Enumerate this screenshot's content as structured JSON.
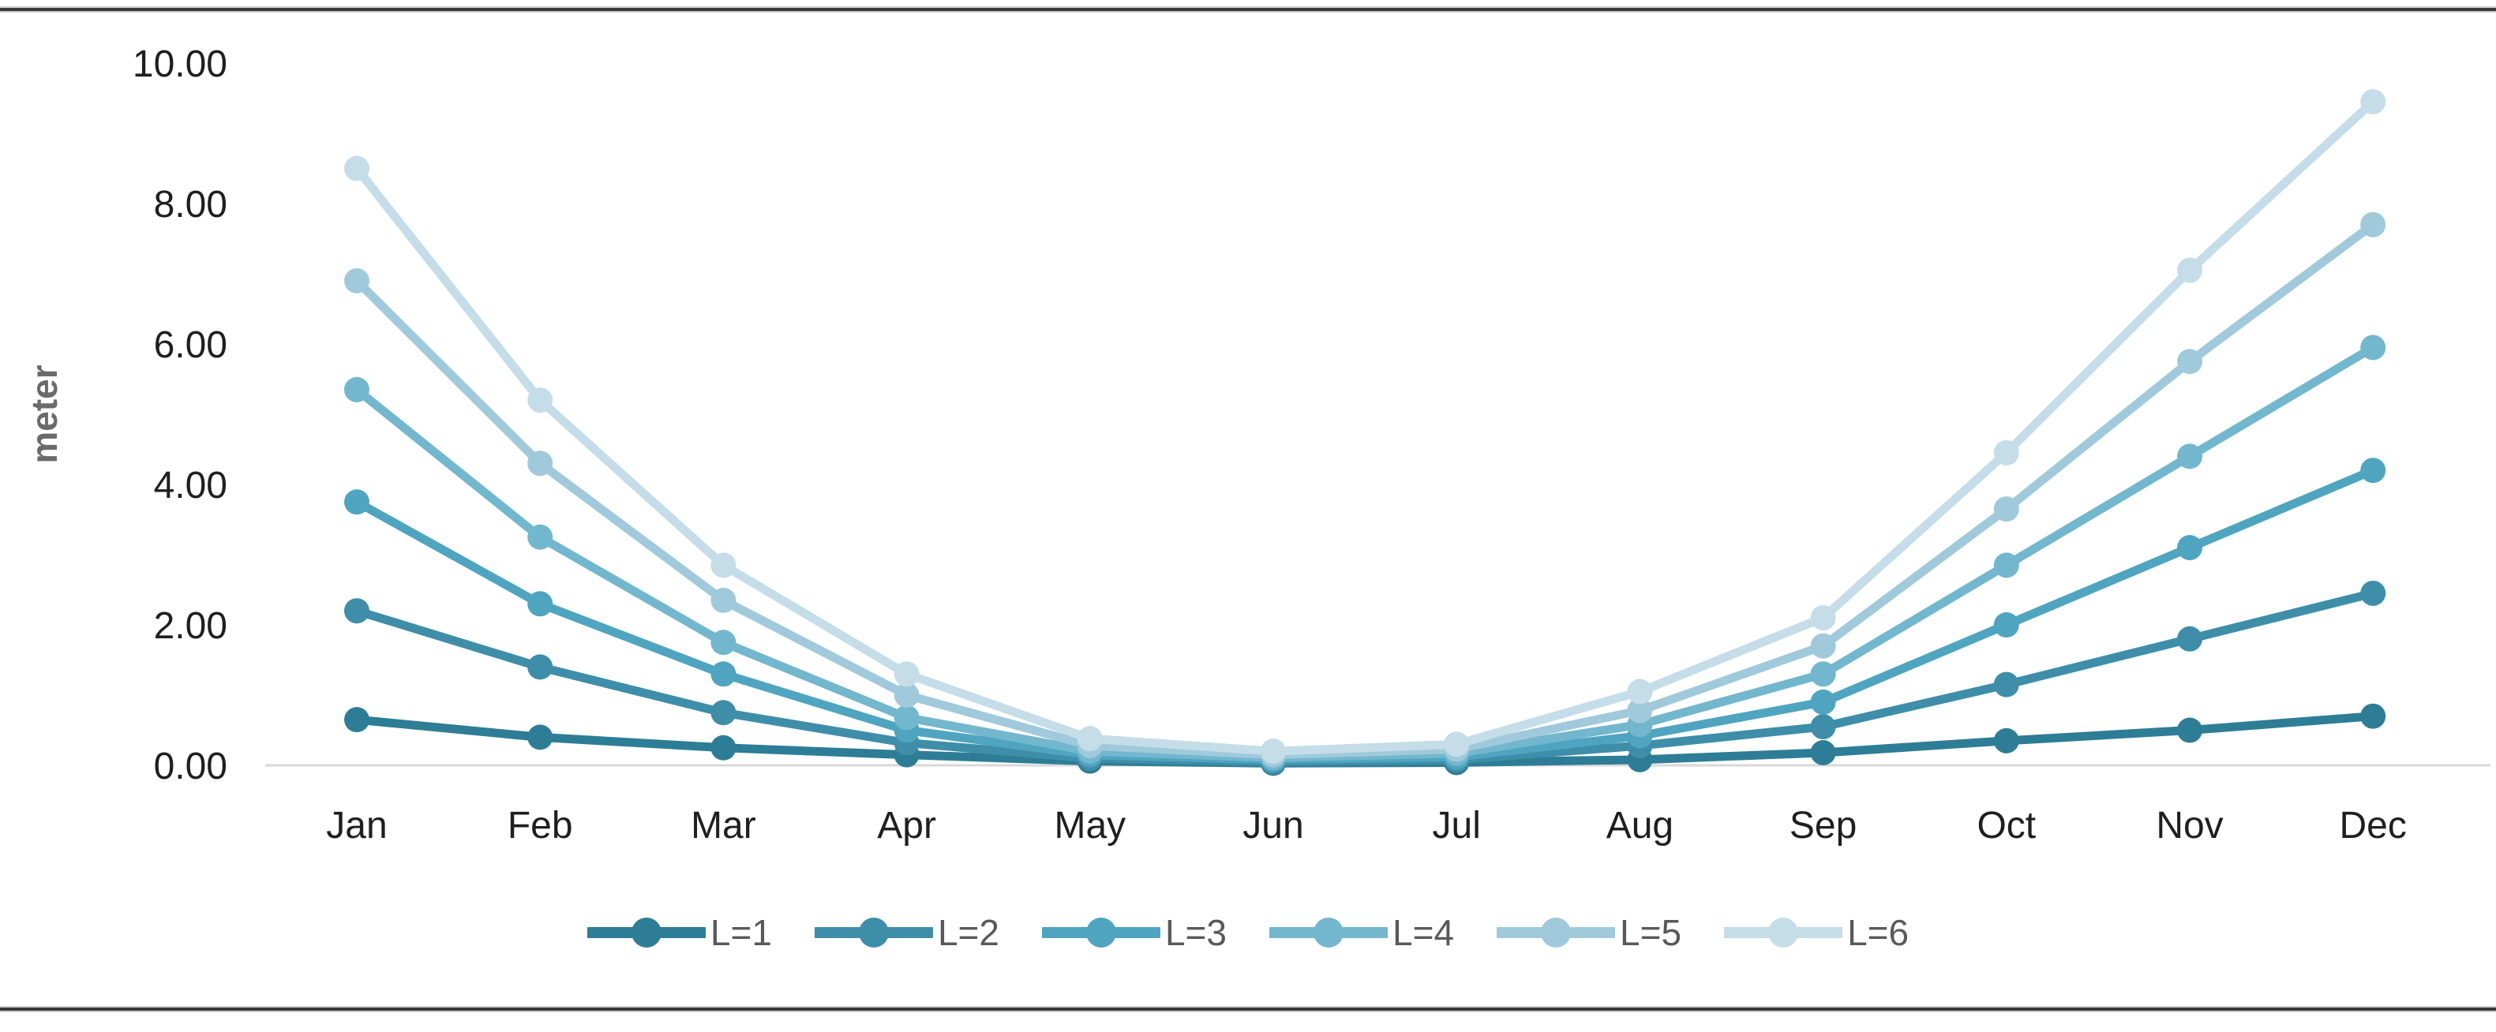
{
  "chart_data": {
    "type": "line",
    "title": "",
    "ylabel": "meter",
    "xlabel": "",
    "categories": [
      "Jan",
      "Feb",
      "Mar",
      "Apr",
      "May",
      "Jun",
      "Jul",
      "Aug",
      "Sep",
      "Oct",
      "Nov",
      "Dec"
    ],
    "y_tick_labels": [
      "0.00",
      "2.00",
      "4.00",
      "6.00",
      "8.00",
      "10.00"
    ],
    "y_tick_values": [
      0,
      2,
      4,
      6,
      8,
      10
    ],
    "ylim": [
      0,
      10
    ],
    "grid": "baseline only",
    "legend_position": "bottom",
    "marker": "circle",
    "axis_text_color": "#1f1f1f",
    "ylabel_color": "#6b6b6b",
    "legend_text_color": "#595959",
    "gridline_color": "#d9d9d9",
    "divider_rule_color": "#3a3a3a",
    "series": [
      {
        "name": "L=1",
        "color": "#2E7D96",
        "values": [
          0.65,
          0.4,
          0.25,
          0.15,
          0.06,
          0.03,
          0.04,
          0.08,
          0.18,
          0.35,
          0.5,
          0.7
        ]
      },
      {
        "name": "L=2",
        "color": "#3E8EA9",
        "values": [
          2.2,
          1.4,
          0.75,
          0.32,
          0.1,
          0.05,
          0.08,
          0.28,
          0.55,
          1.15,
          1.8,
          2.45
        ]
      },
      {
        "name": "L=3",
        "color": "#4FA5C0",
        "values": [
          3.75,
          2.3,
          1.3,
          0.5,
          0.15,
          0.08,
          0.12,
          0.42,
          0.9,
          2.0,
          3.1,
          4.2
        ]
      },
      {
        "name": "L=4",
        "color": "#72B7CD",
        "values": [
          5.35,
          3.25,
          1.75,
          0.68,
          0.2,
          0.11,
          0.17,
          0.58,
          1.3,
          2.85,
          4.4,
          5.95
        ]
      },
      {
        "name": "L=5",
        "color": "#A0CADB",
        "values": [
          6.9,
          4.3,
          2.35,
          1.0,
          0.28,
          0.15,
          0.23,
          0.78,
          1.7,
          3.65,
          5.75,
          7.7
        ]
      },
      {
        "name": "L=6",
        "color": "#C4DDE9",
        "values": [
          8.5,
          5.2,
          2.85,
          1.3,
          0.38,
          0.2,
          0.3,
          1.05,
          2.1,
          4.45,
          7.05,
          9.45
        ]
      }
    ]
  }
}
